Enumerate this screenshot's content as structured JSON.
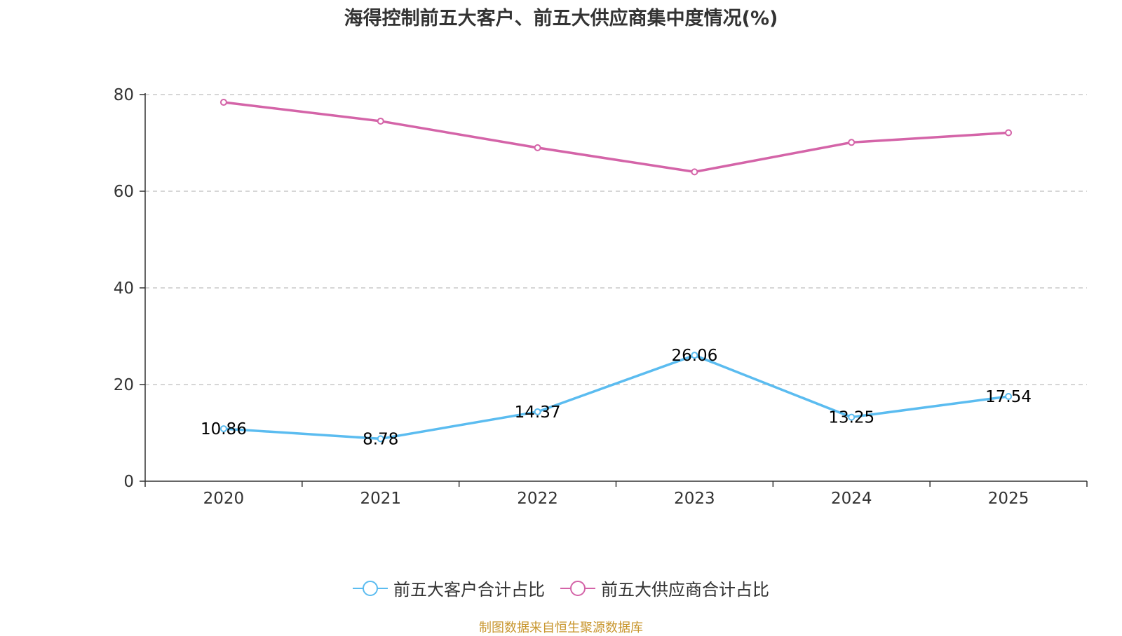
{
  "title": "海得控制前五大客户、前五大供应商集中度情况(%)",
  "footer": "制图数据来自恒生聚源数据库",
  "colors": {
    "customers": "#5bbcf0",
    "suppliers": "#d464a8",
    "grid": "#c8c8c8",
    "axis": "#333333"
  },
  "chart_data": {
    "type": "line",
    "title": "海得控制前五大客户、前五大供应商集中度情况(%)",
    "categories": [
      "2020",
      "2021",
      "2022",
      "2023",
      "2024",
      "2025"
    ],
    "ylim": [
      0,
      80
    ],
    "yticks": [
      0,
      20,
      40,
      60,
      80
    ],
    "grid": true,
    "legend_position": "bottom",
    "series": [
      {
        "name": "前五大客户合计占比",
        "color": "#5bbcf0",
        "values": [
          10.86,
          8.78,
          14.37,
          26.06,
          13.25,
          17.54
        ],
        "labels": [
          "10.86",
          "8.78",
          "14.37",
          "26.06",
          "13.25",
          "17.54"
        ],
        "show_labels": true
      },
      {
        "name": "前五大供应商合计占比",
        "color": "#d464a8",
        "values": [
          78.4,
          74.5,
          69.0,
          64.0,
          70.1,
          72.1
        ],
        "show_labels": false
      }
    ]
  }
}
